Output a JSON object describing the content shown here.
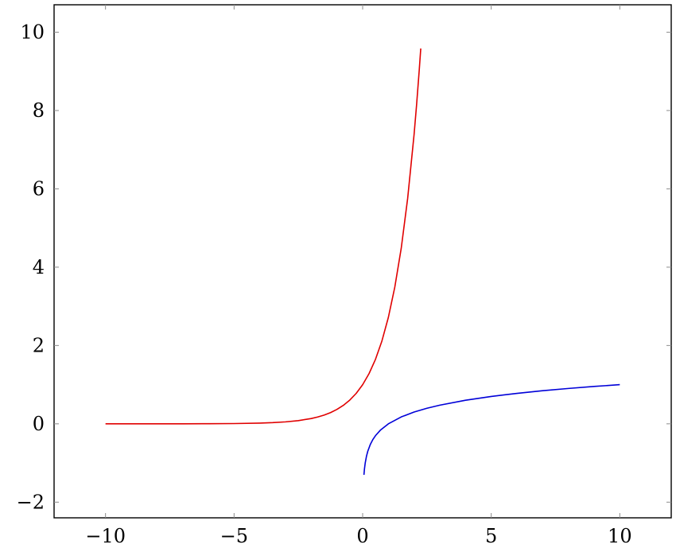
{
  "chart_data": {
    "type": "line",
    "title": "",
    "xlabel": "",
    "ylabel": "",
    "xlim": [
      -12,
      12
    ],
    "ylim": [
      -2.4,
      10.7
    ],
    "xticks": [
      -10,
      -5,
      0,
      5,
      10
    ],
    "yticks": [
      -2,
      0,
      2,
      4,
      6,
      8,
      10
    ],
    "xtick_labels": [
      "−10",
      "−5",
      "0",
      "5",
      "10"
    ],
    "ytick_labels": [
      "−2",
      "0",
      "2",
      "4",
      "6",
      "8",
      "10"
    ],
    "grid": false,
    "legend": "none",
    "series": [
      {
        "color": "#e00000",
        "x": [
          -10,
          -9,
          -8,
          -7,
          -6,
          -5,
          -4,
          -3.5,
          -3,
          -2.5,
          -2,
          -1.75,
          -1.5,
          -1.25,
          -1,
          -0.75,
          -0.5,
          -0.25,
          0,
          0.25,
          0.5,
          0.75,
          1,
          1.25,
          1.5,
          1.75,
          2,
          2.1,
          2.2,
          2.26
        ],
        "y": [
          0.0,
          0.0001,
          0.0003,
          0.0009,
          0.0025,
          0.0067,
          0.0183,
          0.0302,
          0.0498,
          0.0821,
          0.1353,
          0.1738,
          0.2231,
          0.2865,
          0.3679,
          0.4724,
          0.6065,
          0.7788,
          1.0,
          1.284,
          1.6487,
          2.117,
          2.7183,
          3.4903,
          4.4817,
          5.7546,
          7.3891,
          8.1662,
          9.025,
          9.5831
        ]
      },
      {
        "color": "#0000d8",
        "x": [
          0.05,
          0.07,
          0.1,
          0.15,
          0.2,
          0.3,
          0.4,
          0.5,
          0.7,
          1,
          1.5,
          2,
          2.5,
          3,
          4,
          5,
          6,
          7,
          8,
          9,
          10
        ],
        "y": [
          -1.301,
          -1.155,
          -1.0,
          -0.824,
          -0.699,
          -0.523,
          -0.398,
          -0.301,
          -0.155,
          0.0,
          0.176,
          0.301,
          0.398,
          0.477,
          0.602,
          0.699,
          0.778,
          0.845,
          0.903,
          0.954,
          1.0
        ]
      }
    ]
  }
}
